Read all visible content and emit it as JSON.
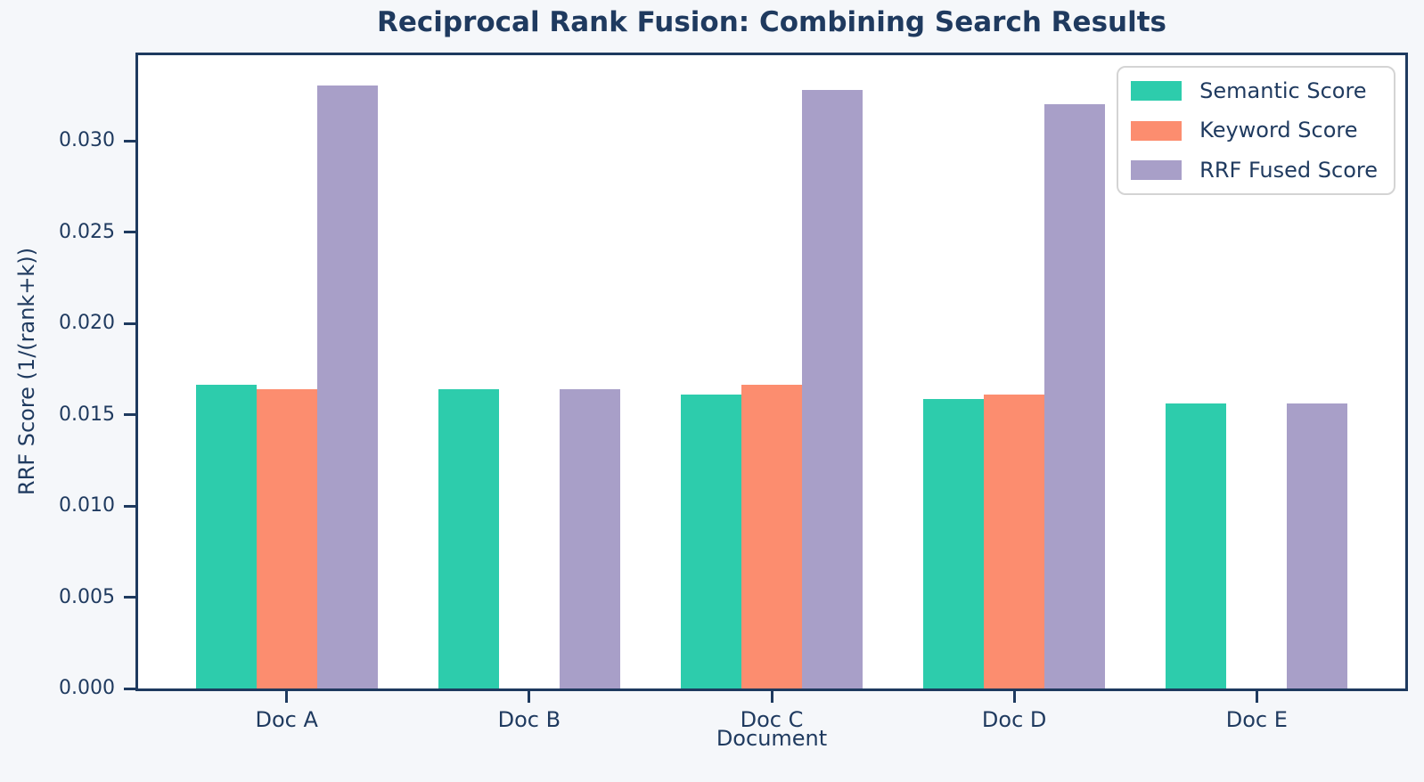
{
  "figure": {
    "background": "#f5f7fa",
    "plot_background": "#ffffff",
    "text_color": "#1f3a5f",
    "spine_color": "#1e3a5f",
    "legend_border_color": "#d4d4d4"
  },
  "chart_data": {
    "type": "bar",
    "title": "Reciprocal Rank Fusion: Combining Search Results",
    "xlabel": "Document",
    "ylabel": "RRF Score (1/(rank+k))",
    "categories": [
      "Doc A",
      "Doc B",
      "Doc C",
      "Doc D",
      "Doc E"
    ],
    "series": [
      {
        "name": "Semantic Score",
        "color": "#2dccac",
        "values": [
          0.016667,
          0.016393,
          0.016129,
          0.015873,
          0.015625
        ]
      },
      {
        "name": "Keyword Score",
        "color": "#fc8d6f",
        "values": [
          0.016393,
          0,
          0.016667,
          0.016129,
          0
        ]
      },
      {
        "name": "RRF Fused Score",
        "color": "#a89fc8",
        "values": [
          0.03306,
          0.016393,
          0.032796,
          0.032002,
          0.015625
        ]
      }
    ],
    "ylim": [
      0,
      0.0347
    ],
    "yticks": [
      0,
      0.005,
      0.01,
      0.015,
      0.02,
      0.025,
      0.03
    ],
    "ytick_labels": [
      "0.000",
      "0.005",
      "0.010",
      "0.015",
      "0.020",
      "0.025",
      "0.030"
    ],
    "legend_position": "upper right",
    "grid": false,
    "bar_width": 0.25
  }
}
